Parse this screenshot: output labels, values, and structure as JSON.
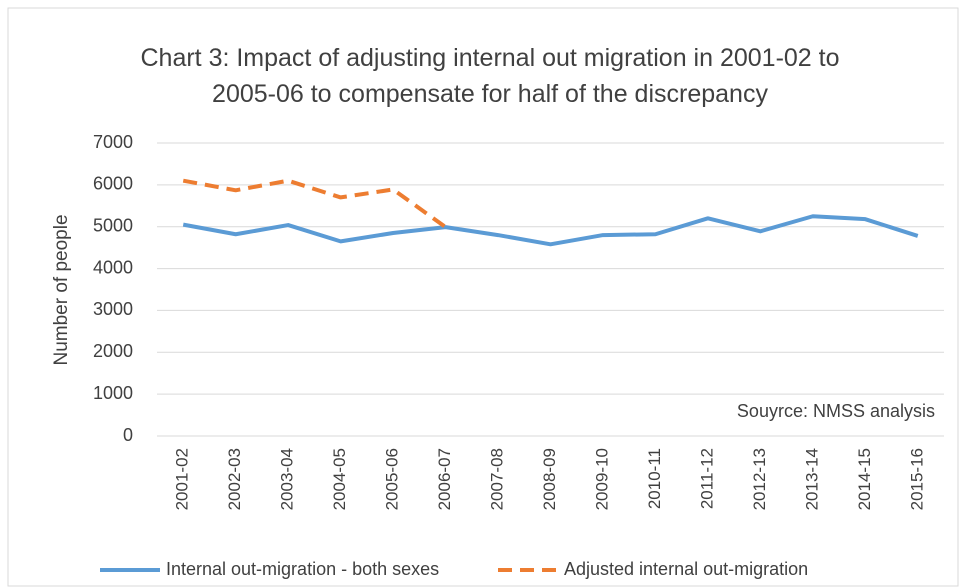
{
  "chart_data": {
    "type": "line",
    "title": "Chart 3: Impact of adjusting internal out migration in 2001-02 to 2005-06 to compensate for half of the discrepancy",
    "y_label": "Number of people",
    "annotation": "Souyrce: NMSS analysis",
    "categories": [
      "2001-02",
      "2002-03",
      "2003-04",
      "2004-05",
      "2005-06",
      "2006-07",
      "2007-08",
      "2008-09",
      "2009-10",
      "2010-11",
      "2011-12",
      "2012-13",
      "2013-14",
      "2014-15",
      "2015-16"
    ],
    "series": [
      {
        "name": "Internal out-migration - both sexes",
        "color": "#5b9bd5",
        "dashed": false,
        "values": [
          5050,
          4820,
          5040,
          4650,
          4850,
          4990,
          4800,
          4580,
          4800,
          4820,
          5200,
          4890,
          5250,
          5180,
          4780
        ]
      },
      {
        "name": "Adjusted internal out-migration",
        "color": "#ed7d31",
        "dashed": true,
        "values": [
          6100,
          5870,
          6100,
          5700,
          5890,
          4990,
          null,
          null,
          null,
          null,
          null,
          null,
          null,
          null,
          null
        ]
      }
    ],
    "ylim": [
      0,
      7000
    ],
    "yticks": [
      0,
      1000,
      2000,
      3000,
      4000,
      5000,
      6000,
      7000
    ],
    "grid": true
  }
}
